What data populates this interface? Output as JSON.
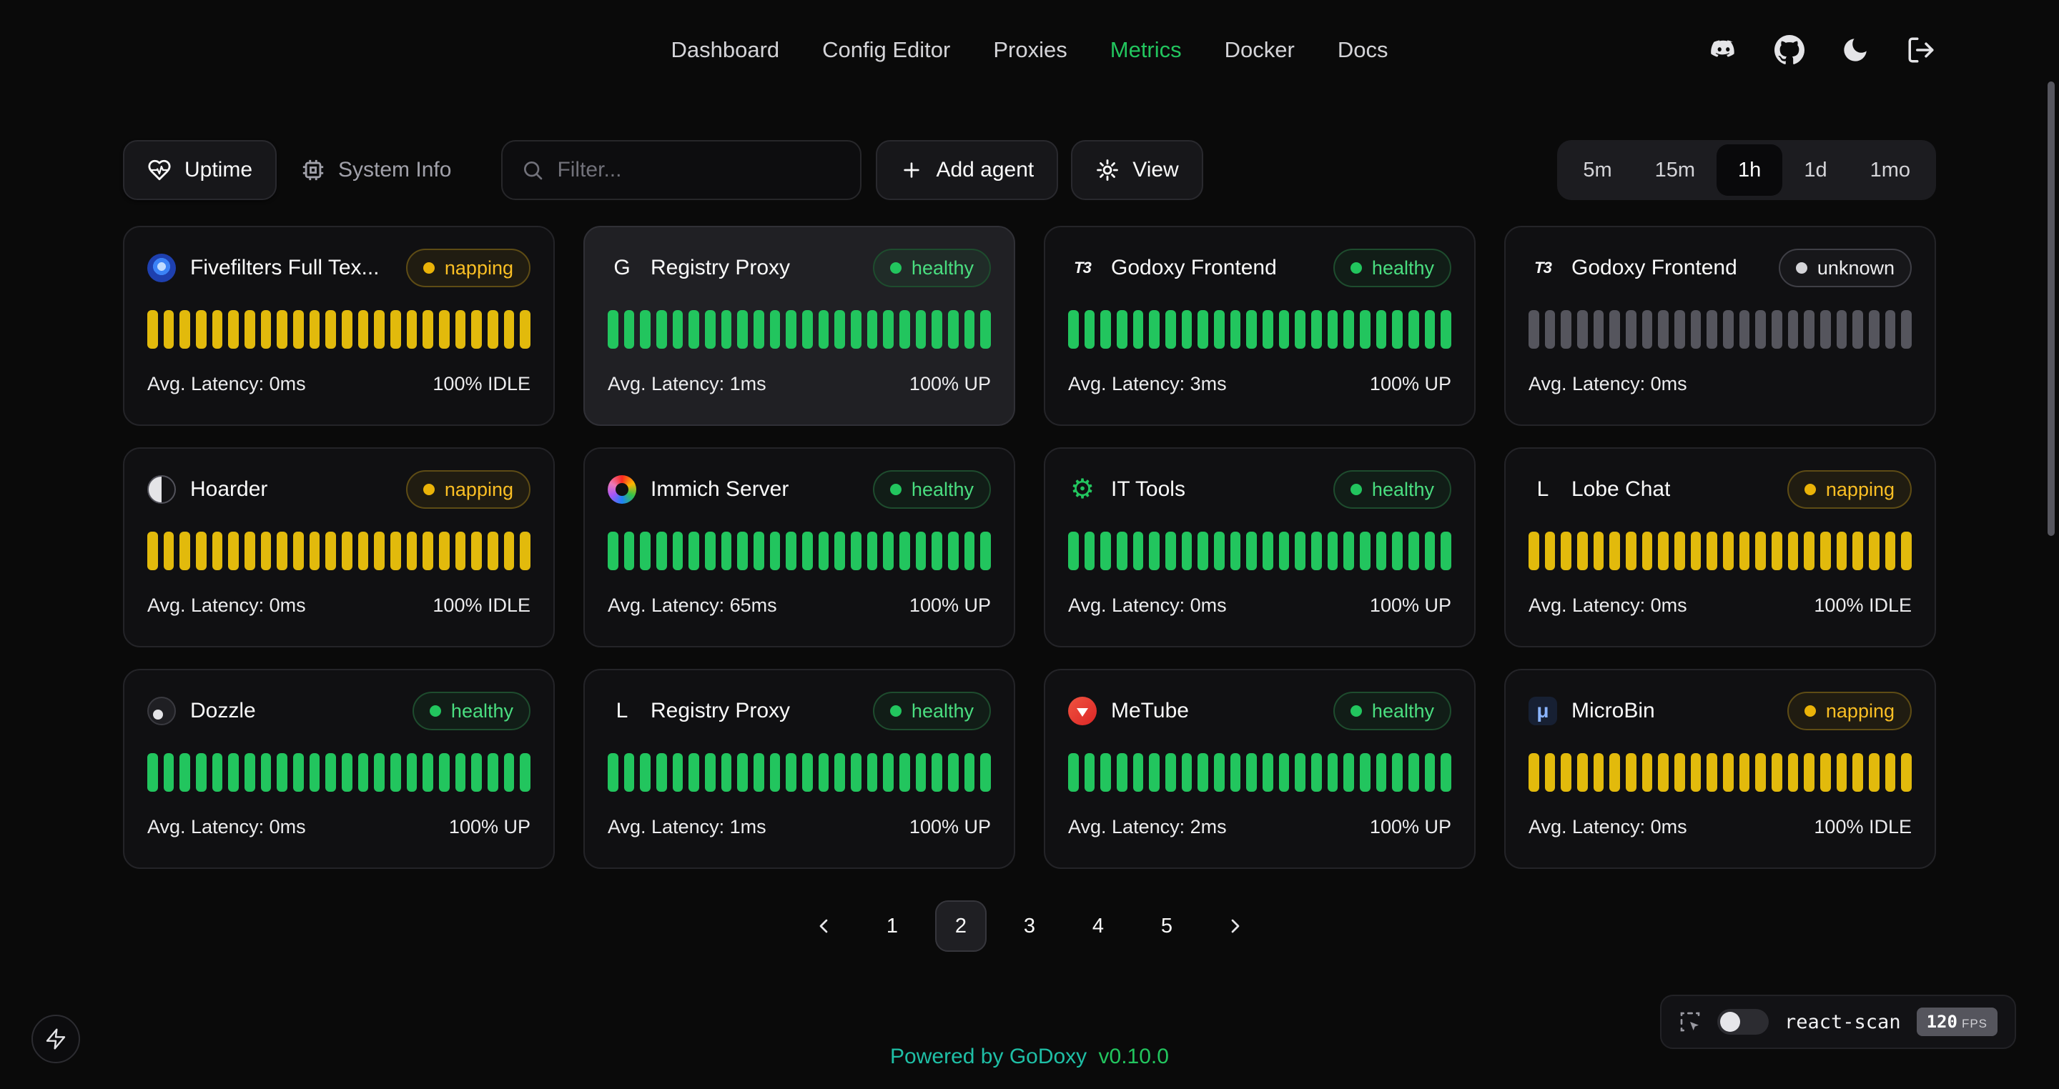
{
  "nav": {
    "items": [
      {
        "label": "Dashboard",
        "active": false
      },
      {
        "label": "Config Editor",
        "active": false
      },
      {
        "label": "Proxies",
        "active": false
      },
      {
        "label": "Metrics",
        "active": true
      },
      {
        "label": "Docker",
        "active": false
      },
      {
        "label": "Docs",
        "active": false
      }
    ],
    "icons": [
      "discord",
      "github",
      "theme-toggle-moon",
      "logout"
    ],
    "accent_color": "#22c55e"
  },
  "toolbar": {
    "uptime_tab": "Uptime",
    "system_info_tab": "System Info",
    "filter_placeholder": "Filter...",
    "add_agent": "Add agent",
    "view": "View",
    "ranges": [
      "5m",
      "15m",
      "1h",
      "1d",
      "1mo"
    ],
    "active_range": "1h"
  },
  "bars_per_card": 24,
  "status_colors": {
    "healthy": "#22c55e",
    "napping": "#eab308",
    "unknown": "#55555d"
  },
  "cards": [
    {
      "name": "Fivefilters Full Tex...",
      "icon": "fivefilters-logo",
      "icon_text": "",
      "status": "napping",
      "latency": "Avg. Latency: 0ms",
      "uptime": "100% IDLE",
      "highlighted": false
    },
    {
      "name": "Registry Proxy",
      "icon": "letter-g",
      "icon_text": "G",
      "status": "healthy",
      "latency": "Avg. Latency: 1ms",
      "uptime": "100% UP",
      "highlighted": true
    },
    {
      "name": "Godoxy Frontend",
      "icon": "t3-logo",
      "icon_text": "T3",
      "status": "healthy",
      "latency": "Avg. Latency: 3ms",
      "uptime": "100% UP",
      "highlighted": false
    },
    {
      "name": "Godoxy Frontend",
      "icon": "t3-logo",
      "icon_text": "T3",
      "status": "unknown",
      "latency": "Avg. Latency: 0ms",
      "uptime": "",
      "highlighted": false
    },
    {
      "name": "Hoarder",
      "icon": "hoarder-logo",
      "icon_text": "",
      "status": "napping",
      "latency": "Avg. Latency: 0ms",
      "uptime": "100% IDLE",
      "highlighted": false
    },
    {
      "name": "Immich Server",
      "icon": "immich-logo",
      "icon_text": "",
      "status": "healthy",
      "latency": "Avg. Latency: 65ms",
      "uptime": "100% UP",
      "highlighted": false
    },
    {
      "name": "IT Tools",
      "icon": "it-tools-gear",
      "icon_text": "",
      "status": "healthy",
      "latency": "Avg. Latency: 0ms",
      "uptime": "100% UP",
      "highlighted": false
    },
    {
      "name": "Lobe Chat",
      "icon": "letter-l",
      "icon_text": "L",
      "status": "napping",
      "latency": "Avg. Latency: 0ms",
      "uptime": "100% IDLE",
      "highlighted": false
    },
    {
      "name": "Dozzle",
      "icon": "dozzle-logo",
      "icon_text": "",
      "status": "healthy",
      "latency": "Avg. Latency: 0ms",
      "uptime": "100% UP",
      "highlighted": false
    },
    {
      "name": "Registry Proxy",
      "icon": "letter-l",
      "icon_text": "L",
      "status": "healthy",
      "latency": "Avg. Latency: 1ms",
      "uptime": "100% UP",
      "highlighted": false
    },
    {
      "name": "MeTube",
      "icon": "metube-logo",
      "icon_text": "",
      "status": "healthy",
      "latency": "Avg. Latency: 2ms",
      "uptime": "100% UP",
      "highlighted": false
    },
    {
      "name": "MicroBin",
      "icon": "microbin-logo",
      "icon_text": "μ",
      "status": "napping",
      "latency": "Avg. Latency: 0ms",
      "uptime": "100% IDLE",
      "highlighted": false
    }
  ],
  "pagination": {
    "pages": [
      "1",
      "2",
      "3",
      "4",
      "5"
    ],
    "active": "2"
  },
  "footer": {
    "powered_by": "Powered by",
    "brand": "GoDoxy",
    "version": "v0.10.0"
  },
  "react_scan": {
    "label": "react-scan",
    "fps_value": "120",
    "fps_unit": "FPS"
  }
}
